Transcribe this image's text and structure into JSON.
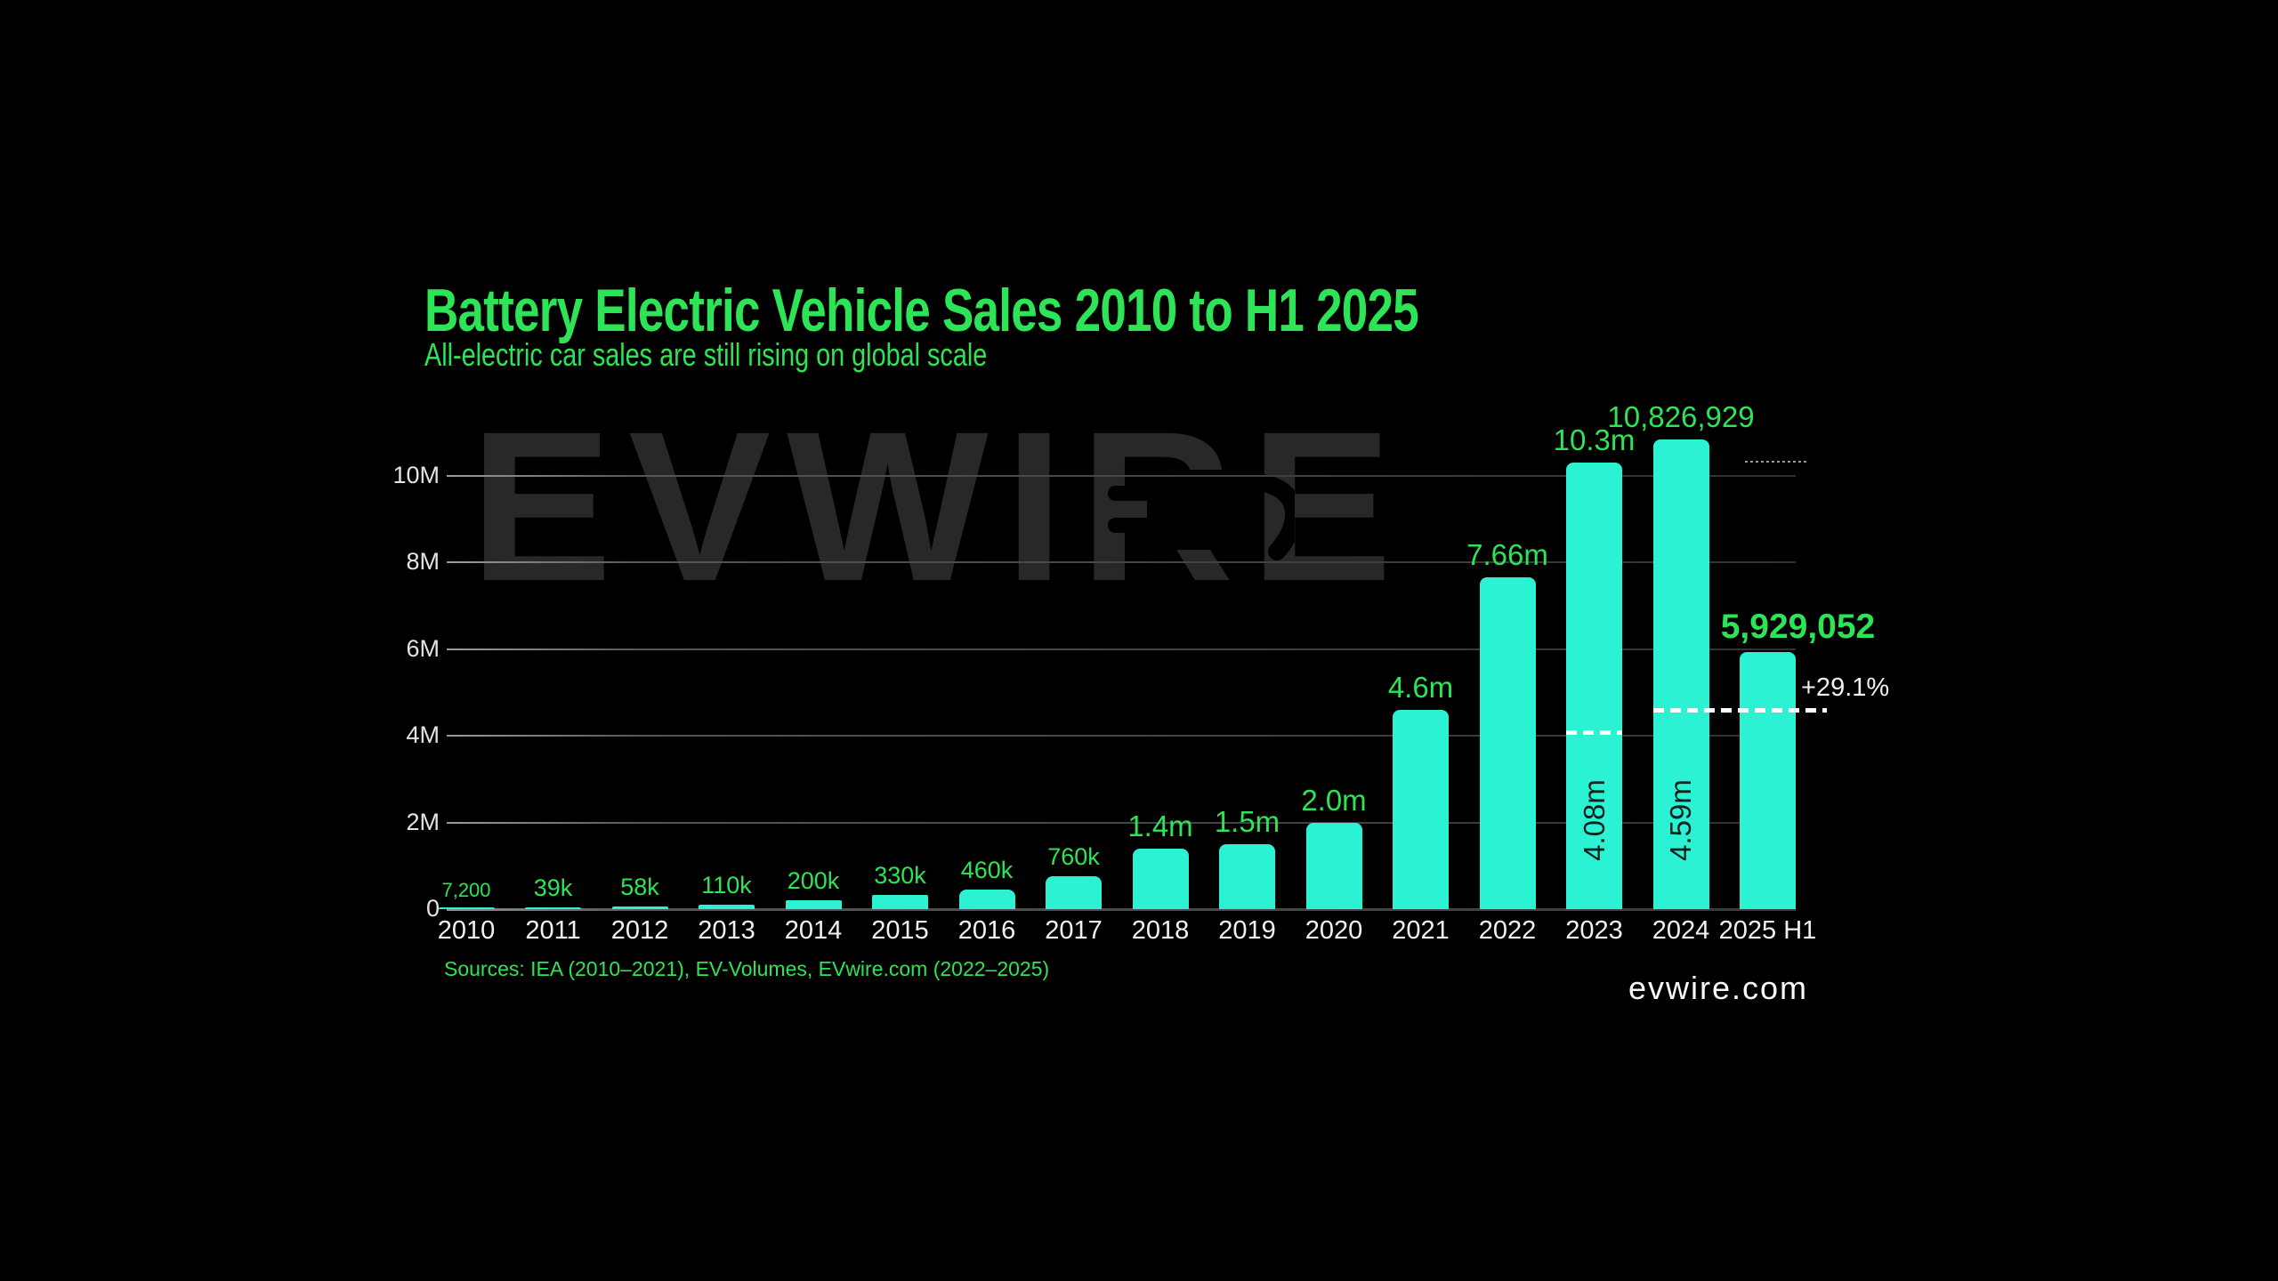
{
  "title": "Battery Electric Vehicle Sales 2010 to H1 2025",
  "subtitle": "All-electric car sales are still rising on global scale",
  "watermark": "EVWIRE",
  "sources_note": "Sources: IEA (2010–2021), EV-Volumes, EVwire.com (2022–2025)",
  "site": "evwire.com",
  "colors": {
    "background": "#000000",
    "green": "#2de456",
    "teal": "#2bf2d2",
    "watermark": "#282828",
    "grid": "#4a4a4a",
    "axis_label": "#e3e3e3",
    "tick_label": "#f1f1f1",
    "dashed_line": "#ffffff",
    "bar_inner_text": "#08211d"
  },
  "chart_data": {
    "type": "bar",
    "title": "Battery Electric Vehicle Sales 2010 to H1 2025",
    "subtitle": "All-electric car sales are still rising on global scale",
    "unit": "battery electric vehicles sold per year",
    "grid": true,
    "ylim_millions": [
      0,
      11
    ],
    "y_ticks": [
      {
        "label": "0",
        "value": 0
      },
      {
        "label": "2M",
        "value": 2
      },
      {
        "label": "4M",
        "value": 4
      },
      {
        "label": "6M",
        "value": 6
      },
      {
        "label": "8M",
        "value": 8
      },
      {
        "label": "10M",
        "value": 10
      }
    ],
    "bars": [
      {
        "year": "2010",
        "label": "7,200",
        "millions": 0.0072,
        "label_style": "s"
      },
      {
        "year": "2011",
        "label": "39k",
        "millions": 0.039,
        "label_style": "m"
      },
      {
        "year": "2012",
        "label": "58k",
        "millions": 0.058,
        "label_style": "m"
      },
      {
        "year": "2013",
        "label": "110k",
        "millions": 0.11,
        "label_style": "m"
      },
      {
        "year": "2014",
        "label": "200k",
        "millions": 0.2,
        "label_style": "m"
      },
      {
        "year": "2015",
        "label": "330k",
        "millions": 0.33,
        "label_style": "m"
      },
      {
        "year": "2016",
        "label": "460k",
        "millions": 0.46,
        "label_style": "m"
      },
      {
        "year": "2017",
        "label": "760k",
        "millions": 0.76,
        "label_style": "m"
      },
      {
        "year": "2018",
        "label": "1.4m",
        "millions": 1.4,
        "label_style": "l"
      },
      {
        "year": "2019",
        "label": "1.5m",
        "millions": 1.5,
        "label_style": "l"
      },
      {
        "year": "2020",
        "label": "2.0m",
        "millions": 2.0,
        "label_style": "l"
      },
      {
        "year": "2021",
        "label": "4.6m",
        "millions": 4.6,
        "label_style": "l"
      },
      {
        "year": "2022",
        "label": "7.66m",
        "millions": 7.66,
        "label_style": "l"
      },
      {
        "year": "2023",
        "label": "10.3m",
        "millions": 10.3,
        "label_style": "l",
        "h1_label": "4.08m",
        "h1_millions": 4.08,
        "h1_line": "bar"
      },
      {
        "year": "2024",
        "label": "10,826,929",
        "millions": 10.826929,
        "label_style": "l",
        "h1_label": "4.59m",
        "h1_millions": 4.59,
        "h1_line": "extended"
      },
      {
        "year": "2025 H1",
        "label": "5,929,052",
        "millions": 5.929052,
        "label_style": "xl",
        "label_dx": 34
      }
    ],
    "growth_annotation": "+29.1%",
    "legend": null
  }
}
